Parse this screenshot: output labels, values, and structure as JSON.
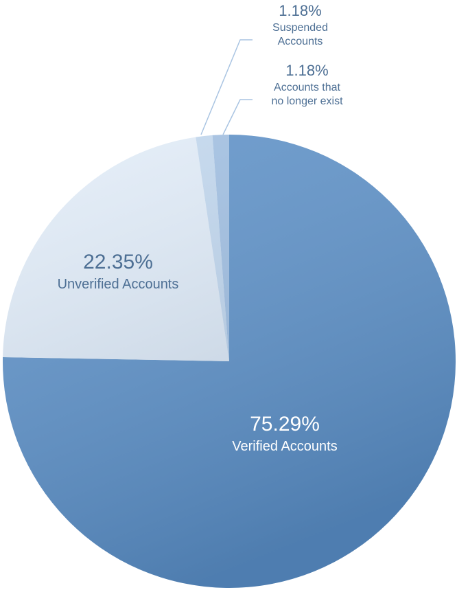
{
  "chart_data": {
    "type": "pie",
    "categories": [
      "Verified Accounts",
      "Unverified Accounts",
      "Suspended Accounts",
      "Accounts that no longer exist"
    ],
    "values": [
      75.29,
      22.35,
      1.18,
      1.18
    ],
    "value_labels": [
      "75.29%",
      "22.35%",
      "1.18%",
      "1.18%"
    ],
    "colors": [
      "#5f92c8",
      "#e3edf8",
      "#c3d8ee",
      "#a2c0e2"
    ]
  }
}
